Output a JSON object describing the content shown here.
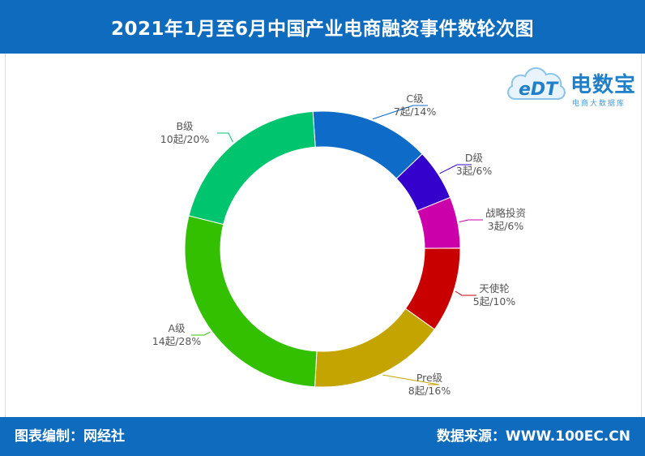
{
  "header": {
    "title": "2021年1月至6月中国产业电商融资事件数轮次图"
  },
  "footer": {
    "left": "图表编制：网经社",
    "right": "数据来源：WWW.100EC.CN"
  },
  "logo": {
    "mark": "eDT",
    "brand": "电数宝",
    "subtitle": "电商大数据库",
    "icon": "cloud-logo-icon"
  },
  "chart_data": {
    "type": "pie",
    "variant": "donut",
    "title": "2021年1月至6月中国产业电商融资事件数轮次图",
    "legend": "none",
    "slices": [
      {
        "name": "C级",
        "count": 7,
        "count_label": "7起/14%",
        "percent": 14,
        "color": "#0e6bc8"
      },
      {
        "name": "D级",
        "count": 3,
        "count_label": "3起/6%",
        "percent": 6,
        "color": "#3300cc"
      },
      {
        "name": "战略投资",
        "count": 3,
        "count_label": "3起/6%",
        "percent": 6,
        "color": "#cc00aa"
      },
      {
        "name": "天使轮",
        "count": 5,
        "count_label": "5起/10%",
        "percent": 10,
        "color": "#c80000"
      },
      {
        "name": "Pre级",
        "count": 8,
        "count_label": "8起/16%",
        "percent": 16,
        "color": "#c4a400"
      },
      {
        "name": "A级",
        "count": 14,
        "count_label": "14起/28%",
        "percent": 28,
        "color": "#33c000"
      },
      {
        "name": "B级",
        "count": 10,
        "count_label": "10起/20%",
        "percent": 20,
        "color": "#00c46e"
      }
    ]
  }
}
